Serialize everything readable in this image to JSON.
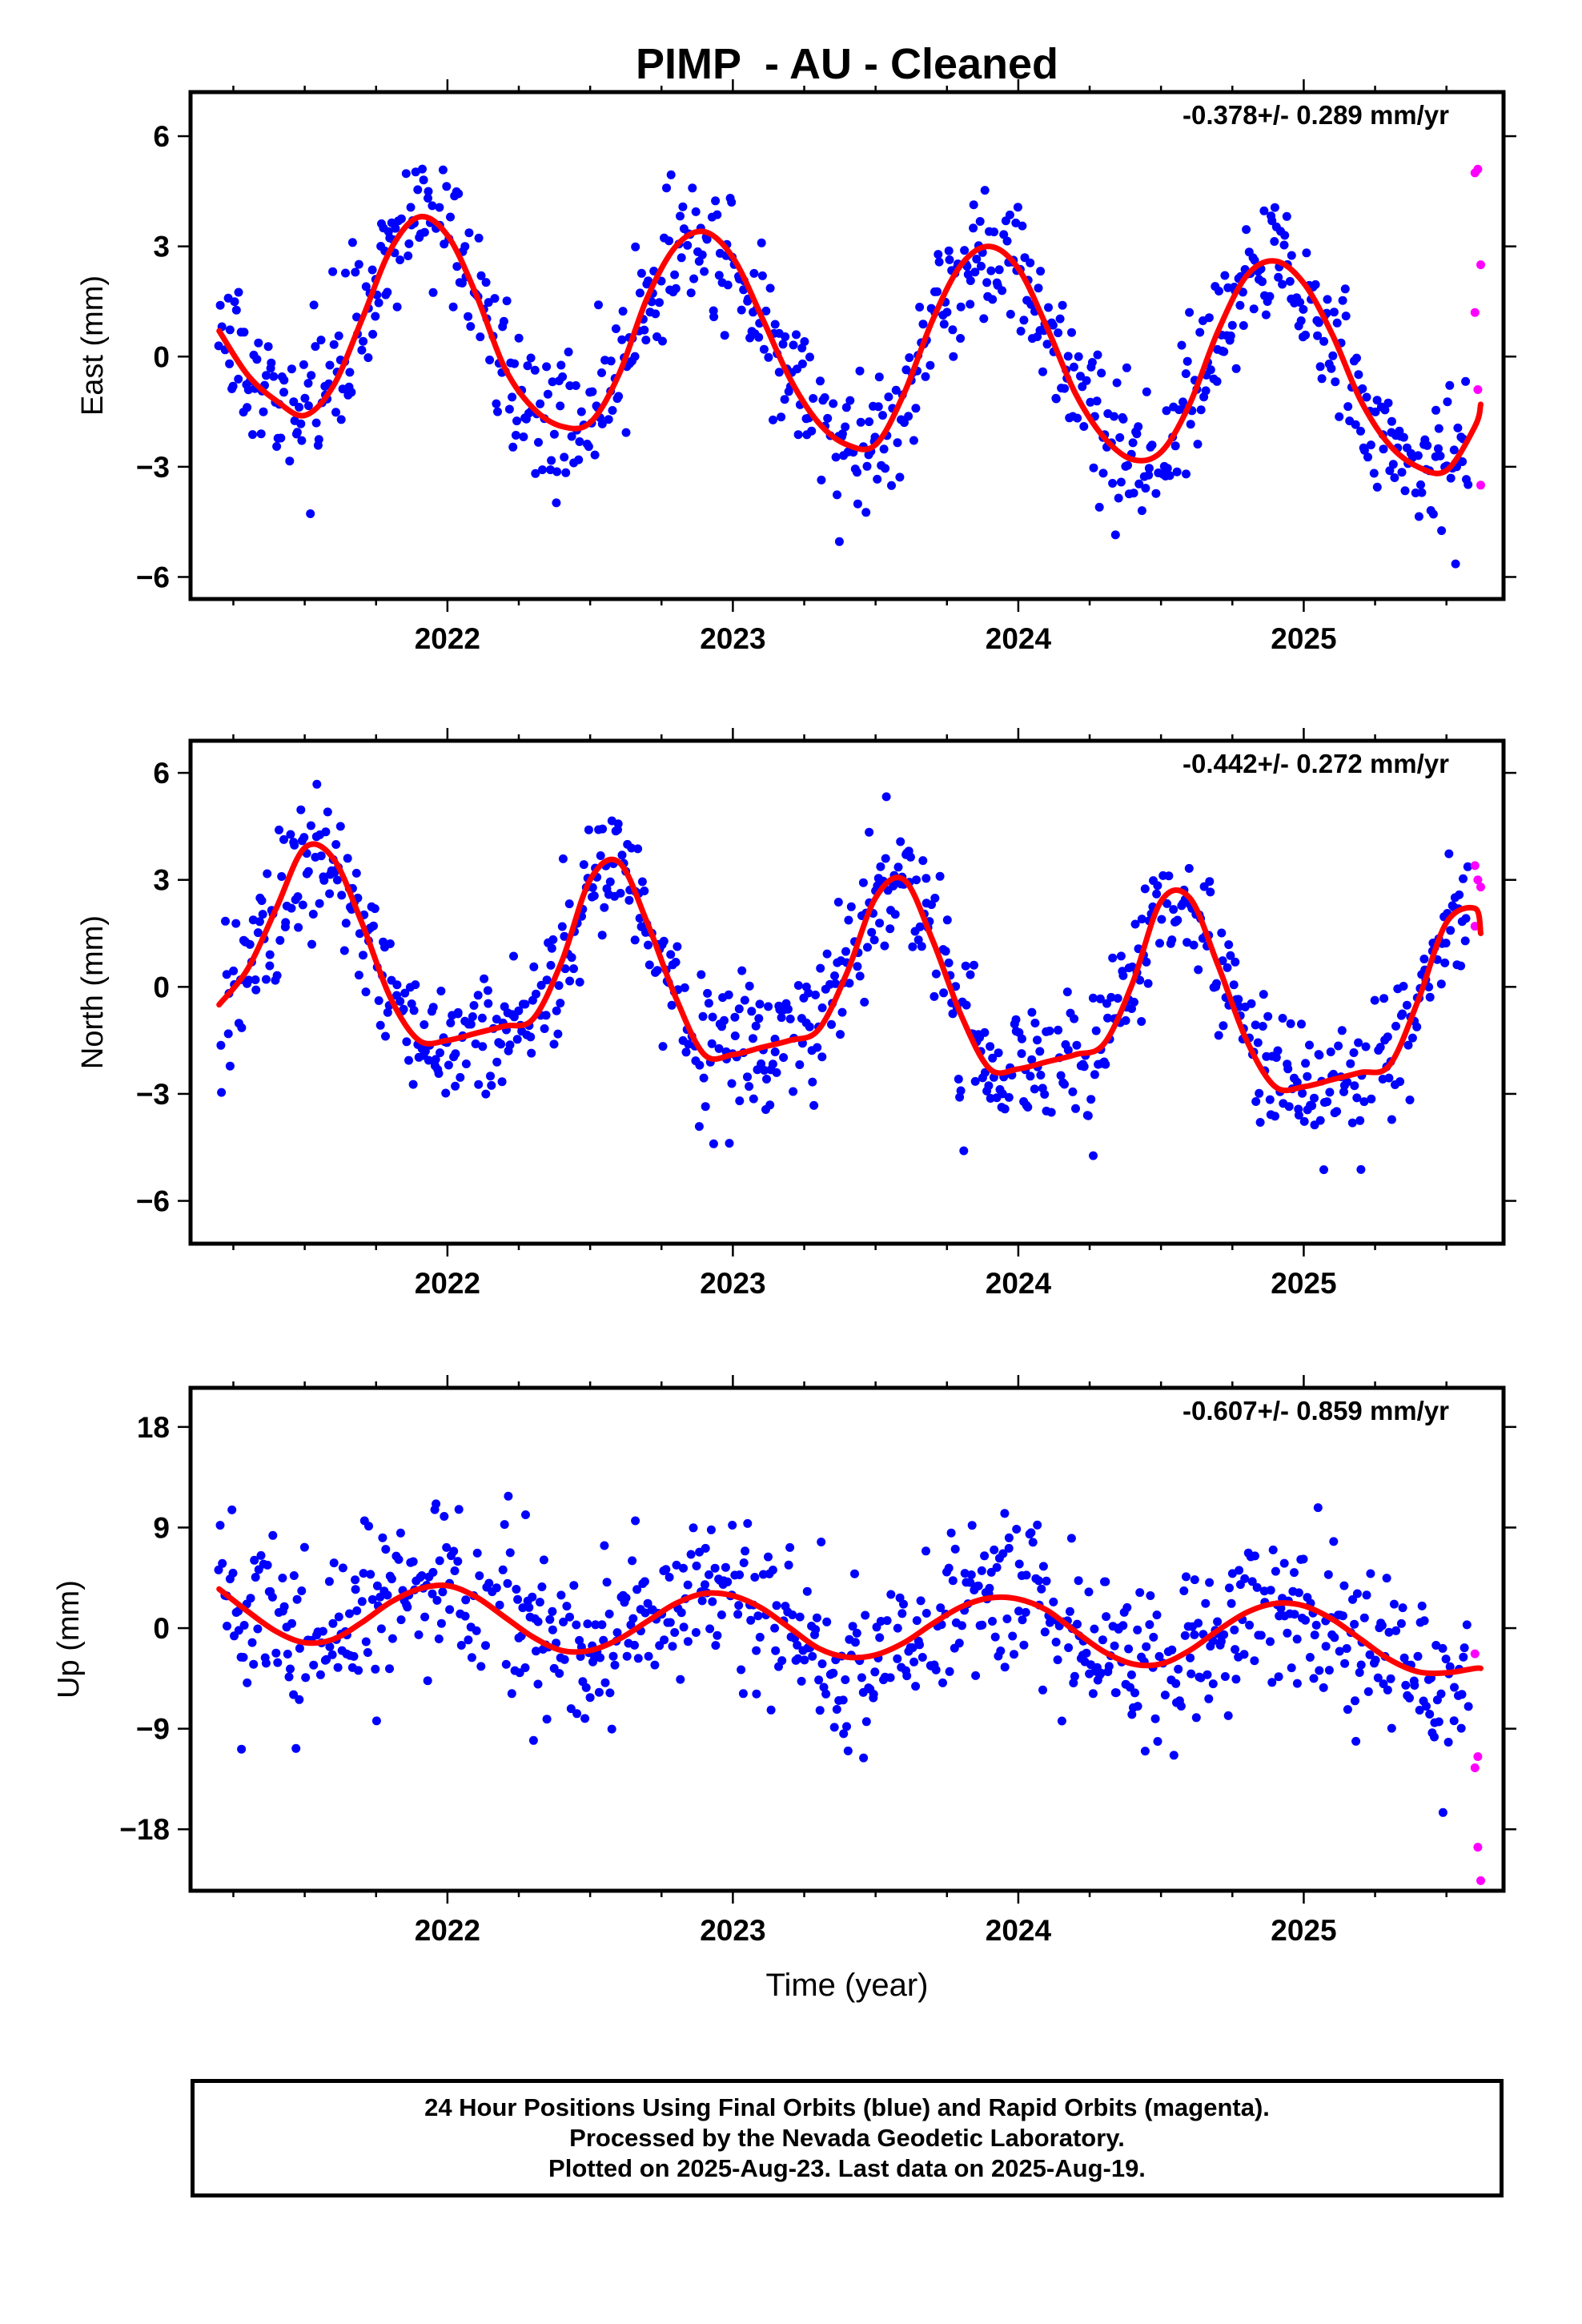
{
  "title": "PIMP  - AU - Cleaned",
  "colors": {
    "final": "#0000ff",
    "rapid": "#ff00ff",
    "model": "#ff0000",
    "frame": "#000000"
  },
  "xlabel": "Time (year)",
  "footer": {
    "line1": "24 Hour Positions Using Final Orbits (blue) and Rapid Orbits (magenta).",
    "line2": "Processed by the Nevada Geodetic Laboratory.",
    "line3": "Plotted on 2025-Aug-23. Last data on 2025-Aug-19."
  },
  "chart_data": [
    {
      "type": "scatter",
      "ylabel": "East (mm)",
      "rate_text": "-0.378+/- 0.289 mm/yr",
      "xlim": [
        2021.1,
        2025.7
      ],
      "ylim": [
        -6.6,
        7.2
      ],
      "xticks": [
        2022,
        2023,
        2024,
        2025
      ],
      "yticks": [
        -6,
        -3,
        0,
        3,
        6
      ],
      "series": [
        {
          "role": "final",
          "x_range": [
            2021.2,
            2025.58
          ],
          "x_step": 0.005,
          "model": {
            "offset": 0.35,
            "rate": -0.378,
            "amp": 2.85,
            "phase_peak": 0.88,
            "noise_sd": 0.95
          }
        },
        {
          "role": "rapid",
          "points": [
            [
              2025.6,
              5.0
            ],
            [
              2025.61,
              5.1
            ],
            [
              2025.62,
              2.5
            ],
            [
              2025.6,
              1.2
            ],
            [
              2025.61,
              -0.9
            ],
            [
              2025.62,
              -3.5
            ]
          ]
        },
        {
          "role": "fit",
          "x": [
            2021.2,
            2021.3,
            2021.4,
            2021.5,
            2021.6,
            2021.7,
            2021.8,
            2021.9,
            2022.0,
            2022.1,
            2022.2,
            2022.3,
            2022.4,
            2022.5,
            2022.6,
            2022.7,
            2022.8,
            2022.9,
            2023.0,
            2023.1,
            2023.2,
            2023.3,
            2023.4,
            2023.5,
            2023.6,
            2023.7,
            2023.8,
            2023.9,
            2024.0,
            2024.1,
            2024.2,
            2024.3,
            2024.4,
            2024.5,
            2024.6,
            2024.7,
            2024.8,
            2024.9,
            2025.0,
            2025.1,
            2025.2,
            2025.3,
            2025.4,
            2025.5,
            2025.6,
            2025.62
          ],
          "y": [
            0.7,
            -0.5,
            -1.2,
            -1.6,
            -0.8,
            1.0,
            2.9,
            3.8,
            3.3,
            1.7,
            -0.3,
            -1.4,
            -1.9,
            -1.8,
            -0.5,
            1.6,
            3.0,
            3.4,
            2.7,
            1.1,
            -0.6,
            -1.8,
            -2.4,
            -2.4,
            -1.0,
            1.0,
            2.5,
            3.0,
            2.4,
            0.8,
            -1.0,
            -2.2,
            -2.8,
            -2.6,
            -1.3,
            0.7,
            2.2,
            2.6,
            2.0,
            0.6,
            -1.2,
            -2.4,
            -3.0,
            -3.1,
            -1.9,
            -1.3
          ]
        }
      ]
    },
    {
      "type": "scatter",
      "ylabel": "North (mm)",
      "rate_text": "-0.442+/- 0.272 mm/yr",
      "xlim": [
        2021.1,
        2025.7
      ],
      "ylim": [
        -7.2,
        6.9
      ],
      "xticks": [
        2022,
        2023,
        2024,
        2025
      ],
      "yticks": [
        -6,
        -3,
        0,
        3,
        6
      ],
      "series": [
        {
          "role": "final",
          "x_range": [
            2021.2,
            2025.58
          ],
          "x_step": 0.005,
          "model": {
            "offset": 0.9,
            "rate": -0.442,
            "amp": 2.6,
            "phase_peak": 0.55,
            "noise_sd": 0.95
          }
        },
        {
          "role": "rapid",
          "points": [
            [
              2025.6,
              3.4
            ],
            [
              2025.61,
              3.0
            ],
            [
              2025.62,
              2.8
            ],
            [
              2025.6,
              1.7
            ]
          ]
        },
        {
          "role": "fit",
          "x": [
            2021.2,
            2021.3,
            2021.4,
            2021.5,
            2021.6,
            2021.7,
            2021.8,
            2021.9,
            2022.0,
            2022.1,
            2022.2,
            2022.3,
            2022.4,
            2022.5,
            2022.6,
            2022.7,
            2022.8,
            2022.9,
            2023.0,
            2023.1,
            2023.2,
            2023.3,
            2023.4,
            2023.5,
            2023.6,
            2023.7,
            2023.8,
            2023.9,
            2024.0,
            2024.1,
            2024.2,
            2024.3,
            2024.4,
            2024.5,
            2024.6,
            2024.7,
            2024.8,
            2024.9,
            2025.0,
            2025.1,
            2025.2,
            2025.3,
            2025.4,
            2025.5,
            2025.6,
            2025.62
          ],
          "y": [
            -0.5,
            0.5,
            2.2,
            3.9,
            3.6,
            1.8,
            -0.3,
            -1.5,
            -1.5,
            -1.3,
            -1.1,
            -0.9,
            0.7,
            3.0,
            3.5,
            1.8,
            -0.3,
            -1.9,
            -1.9,
            -1.7,
            -1.5,
            -1.2,
            0.4,
            2.5,
            3.0,
            1.3,
            -0.8,
            -2.3,
            -2.3,
            -2.1,
            -1.9,
            -1.6,
            0.1,
            2.4,
            2.5,
            0.6,
            -1.5,
            -2.8,
            -2.8,
            -2.6,
            -2.4,
            -2.2,
            -0.4,
            1.8,
            2.2,
            1.5
          ]
        }
      ]
    },
    {
      "type": "scatter",
      "ylabel": "Up (mm)",
      "rate_text": "-0.607+/- 0.859 mm/yr",
      "xlim": [
        2021.1,
        2025.7
      ],
      "ylim": [
        -23.5,
        21.5
      ],
      "xticks": [
        2022,
        2023,
        2024,
        2025
      ],
      "yticks": [
        -18,
        -9,
        0,
        9,
        18
      ],
      "series": [
        {
          "role": "final",
          "x_range": [
            2021.2,
            2025.58
          ],
          "x_step": 0.005,
          "model": {
            "offset": 1.0,
            "rate": -0.607,
            "amp": 2.7,
            "phase_peak": 0.05,
            "noise_sd": 3.6
          }
        },
        {
          "role": "rapid",
          "points": [
            [
              2025.6,
              -2.3
            ],
            [
              2025.61,
              -11.5
            ],
            [
              2025.6,
              -12.5
            ],
            [
              2025.61,
              -19.6
            ],
            [
              2025.62,
              -22.6
            ]
          ]
        },
        {
          "role": "fit",
          "x": [
            2021.2,
            2021.3,
            2021.4,
            2021.5,
            2021.6,
            2021.7,
            2021.8,
            2021.9,
            2022.0,
            2022.1,
            2022.2,
            2022.3,
            2022.4,
            2022.5,
            2022.6,
            2022.7,
            2022.8,
            2022.9,
            2023.0,
            2023.1,
            2023.2,
            2023.3,
            2023.4,
            2023.5,
            2023.6,
            2023.7,
            2023.8,
            2023.9,
            2024.0,
            2024.1,
            2024.2,
            2024.3,
            2024.4,
            2024.5,
            2024.6,
            2024.7,
            2024.8,
            2024.9,
            2025.0,
            2025.1,
            2025.2,
            2025.3,
            2025.4,
            2025.5,
            2025.6,
            2025.62
          ],
          "y": [
            3.5,
            1.5,
            -0.3,
            -1.3,
            -1.0,
            0.5,
            2.3,
            3.5,
            3.8,
            2.8,
            1.0,
            -0.8,
            -2.0,
            -2.0,
            -1.0,
            0.6,
            2.2,
            3.1,
            2.9,
            1.8,
            0.0,
            -1.8,
            -2.6,
            -2.4,
            -1.3,
            0.4,
            1.9,
            2.7,
            2.6,
            1.6,
            -0.3,
            -2.1,
            -3.2,
            -3.2,
            -2.0,
            -0.2,
            1.4,
            2.2,
            2.0,
            0.8,
            -1.0,
            -2.8,
            -3.9,
            -4.0,
            -3.6,
            -3.6
          ]
        }
      ]
    }
  ]
}
